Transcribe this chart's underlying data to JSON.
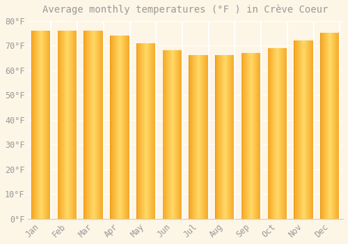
{
  "title": "Average monthly temperatures (°F ) in Crève Coeur",
  "months": [
    "Jan",
    "Feb",
    "Mar",
    "Apr",
    "May",
    "Jun",
    "Jul",
    "Aug",
    "Sep",
    "Oct",
    "Nov",
    "Dec"
  ],
  "values": [
    76,
    76,
    76,
    74,
    71,
    68,
    66,
    66,
    67,
    69,
    72,
    75
  ],
  "bar_color_light": "#FFD966",
  "bar_color_dark": "#F5A623",
  "bar_edge_color": "#E8950A",
  "background_color": "#FDF5E6",
  "grid_color": "#FFFFFF",
  "text_color": "#999999",
  "ylim": [
    0,
    80
  ],
  "yticks": [
    0,
    10,
    20,
    30,
    40,
    50,
    60,
    70,
    80
  ],
  "title_fontsize": 10,
  "tick_fontsize": 8.5,
  "bar_width": 0.75
}
